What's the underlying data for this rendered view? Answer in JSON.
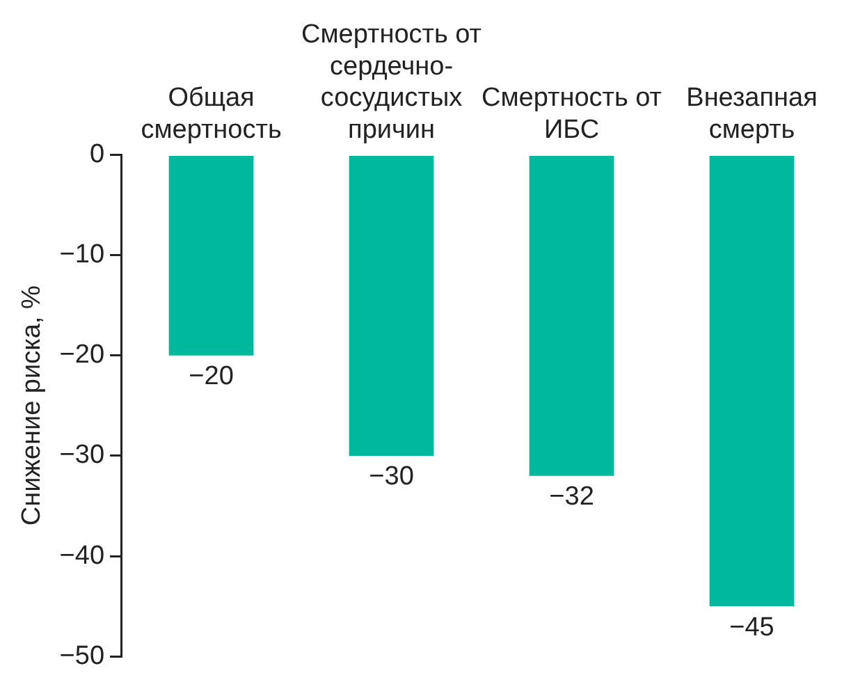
{
  "chart_data": {
    "type": "bar",
    "ylabel": "Снижение риска, %",
    "categories": [
      "Общая смертность",
      "Смертность от сердечно-сосудистых причин",
      "Смертность от ИБС",
      "Внезапная смерть"
    ],
    "values": [
      -20,
      -30,
      -32,
      -45
    ],
    "color": "#00b89c",
    "ylim": [
      -50,
      0
    ],
    "yticks": [
      0,
      -10,
      -20,
      -30,
      -40,
      -50
    ],
    "grid": false,
    "legend": false,
    "data_labels": true
  }
}
